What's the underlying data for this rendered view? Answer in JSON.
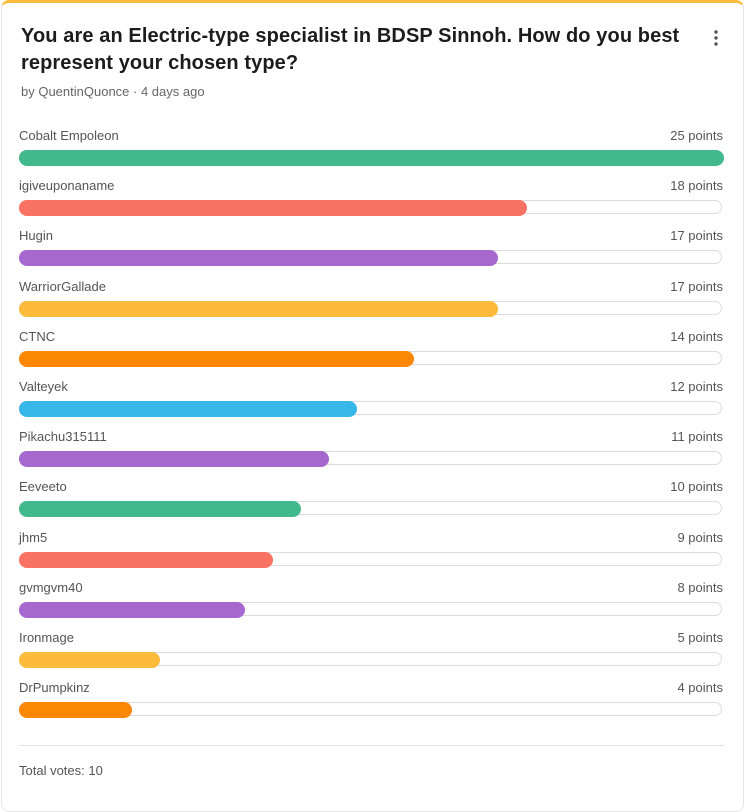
{
  "poll": {
    "title": "You are an Electric-type specialist in BDSP Sinnoh. How do you best represent your chosen type?",
    "byline": "by QuentinQuonce · 4 days ago",
    "accent_color": "#fcbb3b",
    "menu_icon": "more-vertical-icon",
    "max_points": 25,
    "options": [
      {
        "label": "Cobalt Empoleon",
        "points": 25,
        "points_text": "25 points",
        "color": "#42b98d"
      },
      {
        "label": "igiveuponaname",
        "points": 18,
        "points_text": "18 points",
        "color": "#fa7263"
      },
      {
        "label": "Hugin",
        "points": 17,
        "points_text": "17 points",
        "color": "#a667cf"
      },
      {
        "label": "WarriorGallade",
        "points": 17,
        "points_text": "17 points",
        "color": "#fcbb3b"
      },
      {
        "label": "CTNC",
        "points": 14,
        "points_text": "14 points",
        "color": "#fc8704"
      },
      {
        "label": "Valteyek",
        "points": 12,
        "points_text": "12 points",
        "color": "#37b6e8"
      },
      {
        "label": "Pikachu315111",
        "points": 11,
        "points_text": "11 points",
        "color": "#a667cf"
      },
      {
        "label": "Eeveeto",
        "points": 10,
        "points_text": "10 points",
        "color": "#42b98d"
      },
      {
        "label": "jhm5",
        "points": 9,
        "points_text": "9 points",
        "color": "#fa7263"
      },
      {
        "label": "gvmgvm40",
        "points": 8,
        "points_text": "8 points",
        "color": "#a667cf"
      },
      {
        "label": "Ironmage",
        "points": 5,
        "points_text": "5 points",
        "color": "#fcbb3b"
      },
      {
        "label": "DrPumpkinz",
        "points": 4,
        "points_text": "4 points",
        "color": "#fc8704"
      }
    ],
    "total_votes": "Total votes: 10"
  }
}
